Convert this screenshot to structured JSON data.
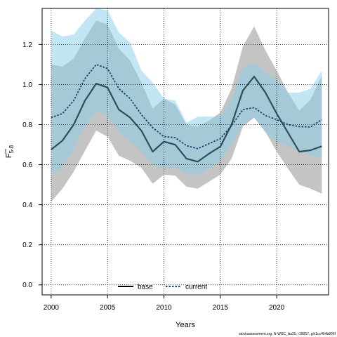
{
  "chart_data": {
    "type": "line",
    "xlabel": "Years",
    "ylabel": "F",
    "ylabel_subscript": "5-8",
    "xlim": [
      1999.2,
      2024.6
    ],
    "ylim": [
      -0.05,
      1.38
    ],
    "xticks": [
      2000,
      2005,
      2010,
      2015,
      2020
    ],
    "yticks": [
      0.0,
      0.2,
      0.4,
      0.6,
      0.8,
      1.0,
      1.2
    ],
    "ytick_labels": [
      "0.0",
      "0.2",
      "0.4",
      "0.6",
      "0.8",
      "1.0",
      "1.2"
    ],
    "grid": true,
    "legend_position": "bottom",
    "x": [
      2000,
      2001,
      2002,
      2003,
      2004,
      2005,
      2006,
      2007,
      2008,
      2009,
      2010,
      2011,
      2012,
      2013,
      2014,
      2015,
      2016,
      2017,
      2018,
      2019,
      2020,
      2021,
      2022,
      2023,
      2024
    ],
    "series": [
      {
        "name": "base",
        "color": "#000000",
        "line_color": "#2e4e5a",
        "band_color": "#bebebe",
        "values": [
          0.675,
          0.72,
          0.8,
          0.92,
          1.005,
          0.985,
          0.875,
          0.835,
          0.77,
          0.665,
          0.715,
          0.7,
          0.63,
          0.615,
          0.655,
          0.69,
          0.8,
          0.97,
          1.04,
          0.96,
          0.855,
          0.76,
          0.665,
          0.672,
          0.692
        ],
        "lower": [
          0.415,
          0.48,
          0.565,
          0.67,
          0.77,
          0.74,
          0.645,
          0.62,
          0.585,
          0.505,
          0.55,
          0.545,
          0.49,
          0.48,
          0.515,
          0.55,
          0.63,
          0.79,
          0.835,
          0.765,
          0.665,
          0.58,
          0.5,
          0.48,
          0.455
        ],
        "upper": [
          1.1,
          1.09,
          1.13,
          1.23,
          1.32,
          1.3,
          1.18,
          1.12,
          1.01,
          0.88,
          0.93,
          0.9,
          0.8,
          0.79,
          0.82,
          0.86,
          0.98,
          1.19,
          1.29,
          1.17,
          1.07,
          0.96,
          0.87,
          0.925,
          1.045
        ]
      },
      {
        "name": "current",
        "color": "#0b4a6f",
        "line_color": "#0b4a6f",
        "band_color": "#87ceeb",
        "values": [
          0.835,
          0.855,
          0.92,
          1.03,
          1.1,
          1.08,
          0.98,
          0.93,
          0.85,
          0.785,
          0.74,
          0.735,
          0.695,
          0.68,
          0.705,
          0.73,
          0.795,
          0.875,
          0.885,
          0.845,
          0.825,
          0.8,
          0.79,
          0.788,
          0.825
        ],
        "lower": [
          0.545,
          0.59,
          0.675,
          0.795,
          0.865,
          0.845,
          0.76,
          0.72,
          0.665,
          0.6,
          0.585,
          0.585,
          0.555,
          0.55,
          0.58,
          0.62,
          0.7,
          0.8,
          0.835,
          0.76,
          0.715,
          0.69,
          0.665,
          0.645,
          0.635
        ],
        "upper": [
          1.27,
          1.24,
          1.25,
          1.32,
          1.38,
          1.37,
          1.26,
          1.21,
          1.07,
          1.01,
          0.93,
          0.92,
          0.81,
          0.84,
          0.84,
          0.84,
          0.92,
          1.08,
          1.11,
          1.06,
          1.02,
          0.96,
          0.96,
          0.98,
          1.07
        ]
      }
    ]
  },
  "source_note": "stockassessment.org, N-WSC_las25, r19057, git:1cc464b806f"
}
